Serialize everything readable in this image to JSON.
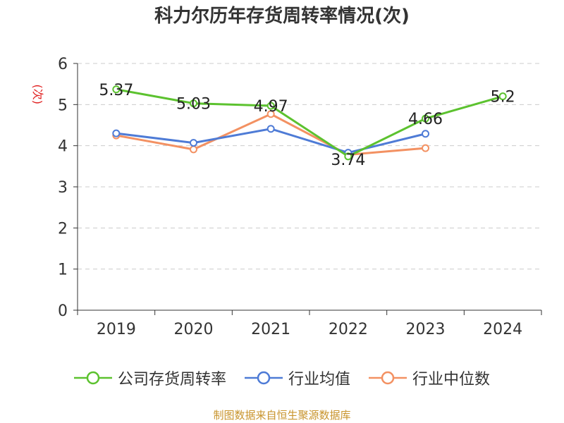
{
  "title": "科力尔历年存货周转率情况(次)",
  "source": "制图数据来自恒生聚源数据库",
  "chart_data": {
    "type": "line",
    "title": "科力尔历年存货周转率情况(次)",
    "ylabel": "(次)",
    "xlabel": "",
    "categories": [
      "2019",
      "2020",
      "2021",
      "2022",
      "2023",
      "2024"
    ],
    "ylim": [
      0,
      6
    ],
    "yticks": [
      0,
      1,
      2,
      3,
      4,
      5,
      6
    ],
    "grid": true,
    "legend_position": "bottom",
    "series": [
      {
        "name": "公司存货周转率",
        "color": "#5cc22f",
        "values": [
          5.37,
          5.03,
          4.97,
          3.74,
          4.66,
          5.2
        ],
        "labels": [
          "5.37",
          "5.03",
          "4.97",
          "3.74",
          "4.66",
          "5.2"
        ]
      },
      {
        "name": "行业均值",
        "color": "#4e7bd6",
        "values": [
          4.3,
          4.07,
          4.41,
          3.83,
          4.29,
          null
        ]
      },
      {
        "name": "行业中位数",
        "color": "#f39162",
        "values": [
          4.25,
          3.91,
          4.77,
          3.78,
          3.94,
          null
        ]
      }
    ]
  }
}
